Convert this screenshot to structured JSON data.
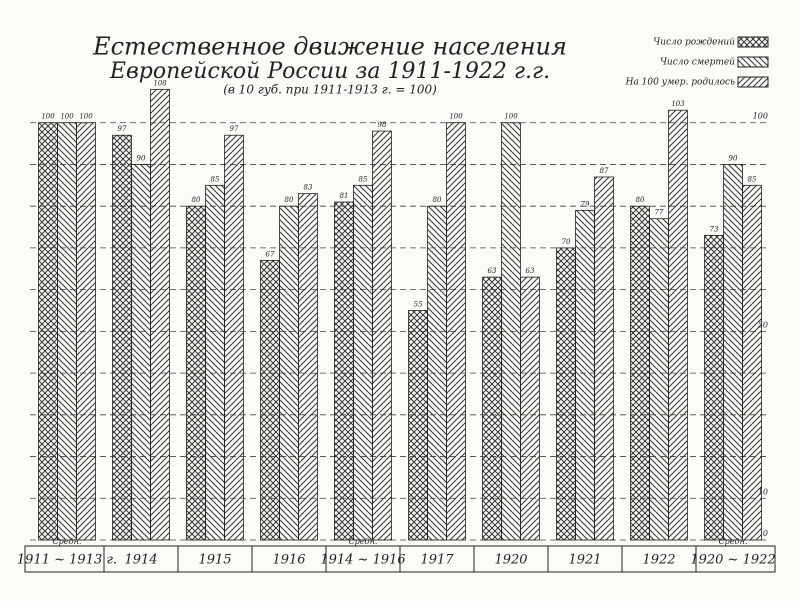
{
  "chart_data": {
    "type": "bar",
    "title": "Естественное движение населения",
    "subtitle": "Европейской России за 1911-1922 г.г.",
    "note": "(в 10 губ. при 1911-1913 г. = 100)",
    "categories": [
      "1911 ~ 1913 г.",
      "1914",
      "1915",
      "1916",
      "1914 ~ 1916",
      "1917",
      "1920",
      "1921",
      "1922",
      "1920 ~ 1922"
    ],
    "category_notes": [
      "Средн.",
      null,
      null,
      null,
      "Средн.",
      null,
      null,
      null,
      null,
      "Средн."
    ],
    "series": [
      {
        "name": "Число рождений",
        "color": "#333333",
        "pattern": "crosshatch",
        "values": [
          100,
          97,
          80,
          67,
          81,
          55,
          63,
          70,
          80,
          73
        ]
      },
      {
        "name": "Число смертей",
        "color": "#333333",
        "pattern": "backslash",
        "values": [
          100,
          90,
          85,
          80,
          85,
          80,
          100,
          79,
          77,
          90
        ]
      },
      {
        "name": "На 100 умер. родилось",
        "color": "#333333",
        "pattern": "slash",
        "values": [
          100,
          108,
          97,
          83,
          98,
          100,
          63,
          87,
          103,
          85
        ]
      }
    ],
    "ylim": [
      0,
      110
    ],
    "yticks": [
      0,
      10,
      50,
      100
    ],
    "minor_yticks": [
      20,
      30,
      40,
      60,
      70,
      80,
      90
    ],
    "grid": true,
    "legend": "top-right"
  }
}
